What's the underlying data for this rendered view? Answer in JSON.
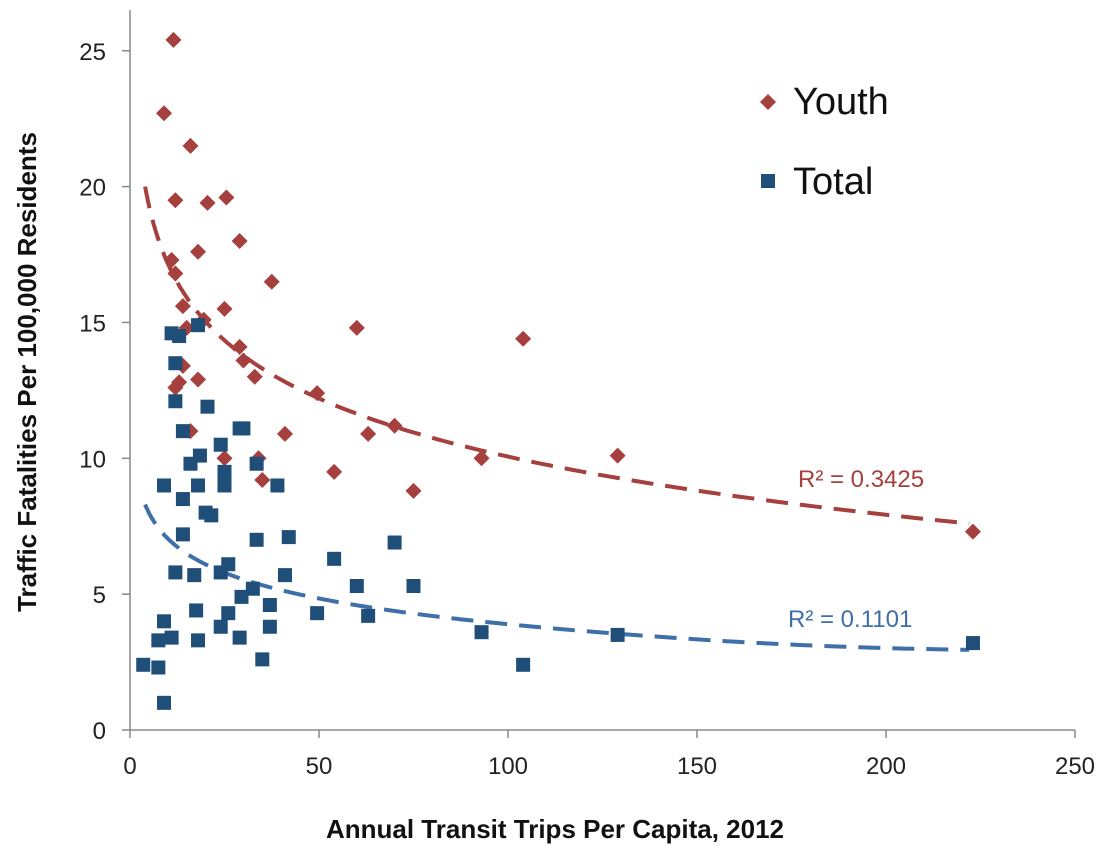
{
  "chart_data": {
    "type": "scatter",
    "xlabel": "Annual Transit Trips Per Capita, 2012",
    "ylabel": "Traffic Fatalities Per 100,000 Residents",
    "xlim": [
      0,
      250
    ],
    "ylim": [
      0,
      26.5
    ],
    "xticks": [
      0,
      50,
      100,
      150,
      200,
      250
    ],
    "yticks": [
      0,
      5,
      10,
      15,
      20,
      25
    ],
    "grid": false,
    "legend_position": "top-right",
    "series": [
      {
        "name": "Youth",
        "marker": "diamond",
        "color": "#A5403E",
        "points": [
          [
            11.5,
            25.4
          ],
          [
            9,
            22.7
          ],
          [
            16,
            21.5
          ],
          [
            12,
            19.5
          ],
          [
            20.5,
            19.4
          ],
          [
            25.5,
            19.6
          ],
          [
            29,
            18.0
          ],
          [
            18,
            17.6
          ],
          [
            11,
            17.3
          ],
          [
            12,
            16.8
          ],
          [
            37.5,
            16.5
          ],
          [
            14,
            15.6
          ],
          [
            25,
            15.5
          ],
          [
            19.5,
            15.1
          ],
          [
            15,
            14.8
          ],
          [
            60,
            14.8
          ],
          [
            104,
            14.4
          ],
          [
            29,
            14.1
          ],
          [
            30,
            13.6
          ],
          [
            14,
            13.4
          ],
          [
            33,
            13.0
          ],
          [
            18,
            12.9
          ],
          [
            12,
            12.6
          ],
          [
            13,
            12.8
          ],
          [
            49.5,
            12.4
          ],
          [
            70,
            11.2
          ],
          [
            16,
            11.0
          ],
          [
            41,
            10.9
          ],
          [
            63,
            10.9
          ],
          [
            25,
            10.0
          ],
          [
            34,
            10.0
          ],
          [
            93,
            10.0
          ],
          [
            129,
            10.1
          ],
          [
            54,
            9.5
          ],
          [
            35,
            9.2
          ],
          [
            75,
            8.8
          ],
          [
            223,
            7.3
          ]
        ],
        "trendline": {
          "type": "logarithmic",
          "r2_label": "R² = 0.3425",
          "from_x": 4,
          "to_x": 222,
          "y_at_start": 20.0,
          "y_at_end": 7.6
        }
      },
      {
        "name": "Total",
        "marker": "square",
        "color": "#1F4E79",
        "points": [
          [
            11,
            14.6
          ],
          [
            13,
            14.5
          ],
          [
            18,
            14.9
          ],
          [
            12,
            13.5
          ],
          [
            12,
            12.1
          ],
          [
            20.5,
            11.9
          ],
          [
            14,
            11.0
          ],
          [
            29,
            11.1
          ],
          [
            30,
            11.1
          ],
          [
            24,
            10.5
          ],
          [
            18.5,
            10.1
          ],
          [
            16,
            9.8
          ],
          [
            25,
            9.5
          ],
          [
            33.5,
            9.8
          ],
          [
            9,
            9.0
          ],
          [
            18,
            9.0
          ],
          [
            25,
            9.0
          ],
          [
            39,
            9.0
          ],
          [
            14,
            8.5
          ],
          [
            20,
            8.0
          ],
          [
            21.5,
            7.9
          ],
          [
            14,
            7.2
          ],
          [
            33.5,
            7.0
          ],
          [
            42,
            7.1
          ],
          [
            70,
            6.9
          ],
          [
            54,
            6.3
          ],
          [
            26,
            6.1
          ],
          [
            12,
            5.8
          ],
          [
            17,
            5.7
          ],
          [
            24,
            5.8
          ],
          [
            41,
            5.7
          ],
          [
            32.5,
            5.2
          ],
          [
            60,
            5.3
          ],
          [
            75,
            5.3
          ],
          [
            29.5,
            4.9
          ],
          [
            37,
            4.6
          ],
          [
            17.5,
            4.4
          ],
          [
            26,
            4.3
          ],
          [
            49.5,
            4.3
          ],
          [
            63,
            4.2
          ],
          [
            9,
            4.0
          ],
          [
            24,
            3.8
          ],
          [
            37,
            3.8
          ],
          [
            93,
            3.6
          ],
          [
            129,
            3.5
          ],
          [
            29,
            3.4
          ],
          [
            11,
            3.4
          ],
          [
            7.5,
            3.3
          ],
          [
            18,
            3.3
          ],
          [
            223,
            3.2
          ],
          [
            35,
            2.6
          ],
          [
            3.5,
            2.4
          ],
          [
            7.5,
            2.3
          ],
          [
            104,
            2.4
          ],
          [
            9,
            1.0
          ]
        ],
        "trendline": {
          "type": "logarithmic",
          "r2_label": "R² = 0.1101",
          "from_x": 4,
          "to_x": 222,
          "y_at_start": 8.3,
          "y_at_end": 2.8
        }
      }
    ]
  }
}
